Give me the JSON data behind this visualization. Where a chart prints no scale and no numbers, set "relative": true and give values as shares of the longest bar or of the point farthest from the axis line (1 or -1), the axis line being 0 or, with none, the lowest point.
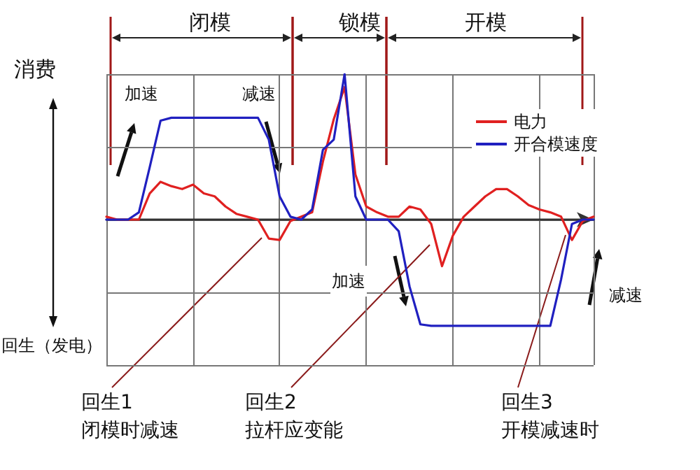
{
  "chart_data": {
    "type": "line",
    "relative": true,
    "ylabel": "消费",
    "legend": "top right",
    "grid": true,
    "marker": "none",
    "line_style": "solid",
    "categories": [
      null,
      null,
      null,
      null,
      null,
      null,
      null,
      null,
      null,
      null,
      null,
      null,
      null,
      null,
      null,
      null,
      null,
      null,
      null,
      null,
      null,
      null,
      null,
      null,
      null,
      null,
      null,
      null,
      null,
      null,
      null,
      null,
      null,
      null,
      null,
      null,
      null,
      null,
      null,
      null,
      null,
      null,
      null,
      null,
      null,
      null
    ],
    "series": [
      {
        "name": "电力",
        "color": "#e02020",
        "values": [
          0.02,
          0,
          0,
          0,
          0.18,
          0.26,
          0.23,
          0.21,
          0.24,
          0.18,
          0.16,
          0.09,
          0.04,
          0.02,
          0,
          -0.13,
          -0.14,
          -0.01,
          0.02,
          0.05,
          0.4,
          0.69,
          0.91,
          0.31,
          0.09,
          0.05,
          0.02,
          0.02,
          0.09,
          0.07,
          -0.03,
          -0.32,
          -0.11,
          0.02,
          0.09,
          0.16,
          0.21,
          0.21,
          0.16,
          0.1,
          0.07,
          0.05,
          0.02,
          -0.14,
          -0.01,
          0.02
        ]
      },
      {
        "name": "开合模速度",
        "color": "#2020c0",
        "values": [
          0,
          0,
          0,
          0.05,
          0.36,
          0.68,
          0.7,
          0.7,
          0.7,
          0.7,
          0.7,
          0.7,
          0.7,
          0.7,
          0.7,
          0.55,
          0.16,
          0.02,
          0,
          0.07,
          0.48,
          0.55,
          1,
          0.16,
          0,
          0,
          0,
          -0.08,
          -0.46,
          -0.72,
          -0.73,
          -0.73,
          -0.73,
          -0.73,
          -0.73,
          -0.73,
          -0.73,
          -0.73,
          -0.73,
          -0.73,
          -0.73,
          -0.73,
          -0.41,
          -0.03,
          0,
          0
        ]
      }
    ],
    "annotations": [
      "闭模",
      "锁模",
      "开模",
      "加速",
      "减速",
      "加速",
      "减速",
      "回生（发电）",
      "回生1\n闭模时减速",
      "回生2\n拉杆应变能",
      "回生3\n开模减速时"
    ]
  }
}
